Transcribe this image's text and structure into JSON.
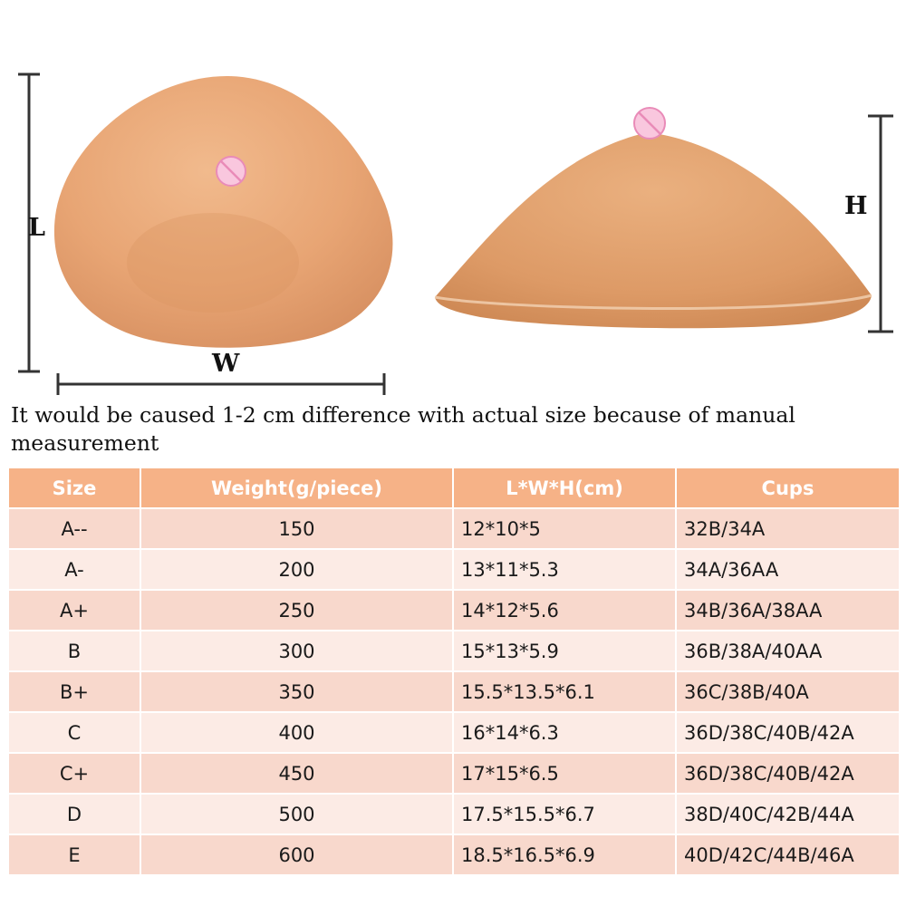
{
  "figure": {
    "dimension_labels": {
      "length": "L",
      "width": "W",
      "height": "H"
    },
    "colors": {
      "silicone": "#e9a878",
      "silicone_dark": "#d68e5c",
      "nipple_badge": "#f7b8d6",
      "rule": "#333333"
    }
  },
  "note": "It would be caused 1-2 cm difference with actual size because of manual measurement",
  "table": {
    "headers": [
      "Size",
      "Weight(g/piece)",
      "L*W*H(cm)",
      "Cups"
    ],
    "rows": [
      {
        "size": "A--",
        "weight": "150",
        "dims": "12*10*5",
        "cups": "32B/34A"
      },
      {
        "size": "A-",
        "weight": "200",
        "dims": "13*11*5.3",
        "cups": "34A/36AA"
      },
      {
        "size": "A+",
        "weight": "250",
        "dims": "14*12*5.6",
        "cups": "34B/36A/38AA"
      },
      {
        "size": "B",
        "weight": "300",
        "dims": "15*13*5.9",
        "cups": "36B/38A/40AA"
      },
      {
        "size": "B+",
        "weight": "350",
        "dims": "15.5*13.5*6.1",
        "cups": "36C/38B/40A"
      },
      {
        "size": "C",
        "weight": "400",
        "dims": "16*14*6.3",
        "cups": "36D/38C/40B/42A"
      },
      {
        "size": "C+",
        "weight": "450",
        "dims": "17*15*6.5",
        "cups": "36D/38C/40B/42A"
      },
      {
        "size": "D",
        "weight": "500",
        "dims": "17.5*15.5*6.7",
        "cups": "38D/40C/42B/44A"
      },
      {
        "size": "E",
        "weight": "600",
        "dims": "18.5*16.5*6.9",
        "cups": "40D/42C/44B/46A"
      }
    ],
    "colors": {
      "header_bg": "#f6b287",
      "row_odd": "#f8d8cc",
      "row_even": "#fcebe5"
    }
  }
}
